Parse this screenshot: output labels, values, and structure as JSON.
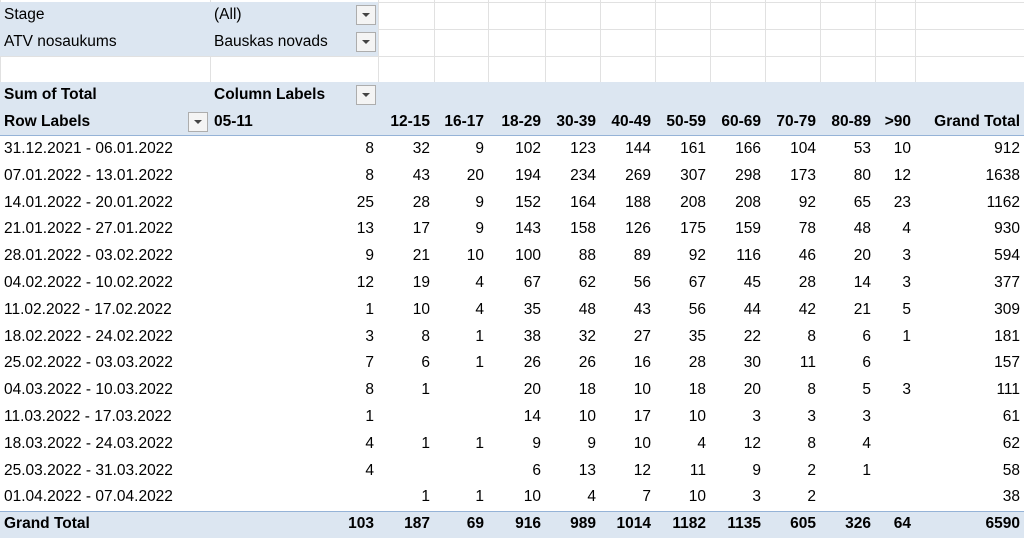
{
  "filters": [
    {
      "label": "Stage",
      "value": "(All)"
    },
    {
      "label": "ATV nosaukums",
      "value": "Bauskas novads"
    }
  ],
  "pivot": {
    "value_label": "Sum of Total",
    "column_labels": "Column Labels",
    "row_labels": "Row Labels",
    "columns": [
      "05-11",
      "12-15",
      "16-17",
      "18-29",
      "30-39",
      "40-49",
      "50-59",
      "60-69",
      "70-79",
      "80-89",
      ">90",
      "Grand Total"
    ],
    "rows": [
      {
        "label": "31.12.2021 - 06.01.2022",
        "values": [
          8,
          32,
          9,
          102,
          123,
          144,
          161,
          166,
          104,
          53,
          10,
          912
        ]
      },
      {
        "label": "07.01.2022 - 13.01.2022",
        "values": [
          8,
          43,
          20,
          194,
          234,
          269,
          307,
          298,
          173,
          80,
          12,
          1638
        ]
      },
      {
        "label": "14.01.2022 - 20.01.2022",
        "values": [
          25,
          28,
          9,
          152,
          164,
          188,
          208,
          208,
          92,
          65,
          23,
          1162
        ]
      },
      {
        "label": "21.01.2022 - 27.01.2022",
        "values": [
          13,
          17,
          9,
          143,
          158,
          126,
          175,
          159,
          78,
          48,
          4,
          930
        ]
      },
      {
        "label": "28.01.2022 - 03.02.2022",
        "values": [
          9,
          21,
          10,
          100,
          88,
          89,
          92,
          116,
          46,
          20,
          3,
          594
        ]
      },
      {
        "label": "04.02.2022 - 10.02.2022",
        "values": [
          12,
          19,
          4,
          67,
          62,
          56,
          67,
          45,
          28,
          14,
          3,
          377
        ]
      },
      {
        "label": "11.02.2022 - 17.02.2022",
        "values": [
          1,
          10,
          4,
          35,
          48,
          43,
          56,
          44,
          42,
          21,
          5,
          309
        ]
      },
      {
        "label": "18.02.2022 - 24.02.2022",
        "values": [
          3,
          8,
          1,
          38,
          32,
          27,
          35,
          22,
          8,
          6,
          1,
          181
        ]
      },
      {
        "label": "25.02.2022 - 03.03.2022",
        "values": [
          7,
          6,
          1,
          26,
          26,
          16,
          28,
          30,
          11,
          6,
          null,
          157
        ]
      },
      {
        "label": "04.03.2022 - 10.03.2022",
        "values": [
          8,
          1,
          null,
          20,
          18,
          10,
          18,
          20,
          8,
          5,
          3,
          111
        ]
      },
      {
        "label": "11.03.2022 - 17.03.2022",
        "values": [
          1,
          null,
          null,
          14,
          10,
          17,
          10,
          3,
          3,
          3,
          null,
          61
        ]
      },
      {
        "label": "18.03.2022 - 24.03.2022",
        "values": [
          4,
          1,
          1,
          9,
          9,
          10,
          4,
          12,
          8,
          4,
          null,
          62
        ]
      },
      {
        "label": "25.03.2022 - 31.03.2022",
        "values": [
          4,
          null,
          null,
          6,
          13,
          12,
          11,
          9,
          2,
          1,
          null,
          58
        ]
      },
      {
        "label": "01.04.2022 - 07.04.2022",
        "values": [
          null,
          1,
          1,
          10,
          4,
          7,
          10,
          3,
          2,
          null,
          null,
          38
        ]
      }
    ],
    "grand_total": {
      "label": "Grand Total",
      "values": [
        103,
        187,
        69,
        916,
        989,
        1014,
        1182,
        1135,
        605,
        326,
        64,
        6590
      ]
    }
  }
}
